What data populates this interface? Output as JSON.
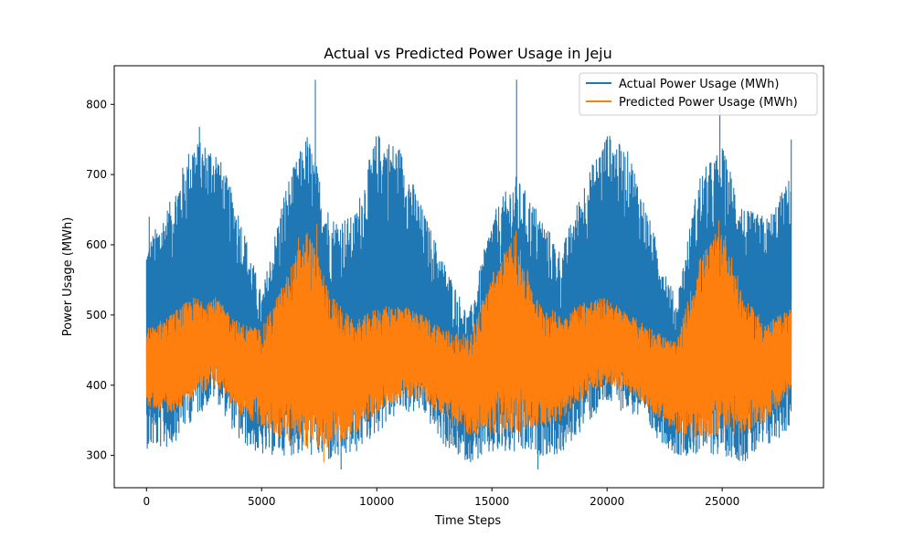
{
  "chart_data": {
    "type": "line",
    "title": "Actual vs Predicted Power Usage in Jeju",
    "xlabel": "Time Steps",
    "ylabel": "Power Usage (MWh)",
    "xlim": [
      -1400,
      29400
    ],
    "ylim": [
      254,
      855
    ],
    "x_ticks": [
      0,
      5000,
      10000,
      15000,
      20000,
      25000
    ],
    "y_ticks": [
      300,
      400,
      500,
      600,
      700,
      800
    ],
    "grid": false,
    "legend_position": "top-right",
    "x_range": [
      0,
      28000
    ],
    "series": [
      {
        "name": "Actual Power Usage (MWh)",
        "color": "#1f77b4",
        "envelope_x": [
          0,
          1000,
          2000,
          3000,
          4000,
          5000,
          6000,
          7000,
          8000,
          9000,
          10000,
          11000,
          12000,
          13000,
          14000,
          15000,
          16000,
          17000,
          18000,
          19000,
          20000,
          21000,
          22000,
          23000,
          24000,
          25000,
          26000,
          27000,
          28000
        ],
        "upper": [
          600,
          660,
          750,
          740,
          650,
          530,
          680,
          760,
          640,
          640,
          760,
          740,
          650,
          570,
          500,
          640,
          700,
          650,
          590,
          690,
          760,
          730,
          620,
          520,
          700,
          740,
          650,
          640,
          700
        ],
        "lower": [
          310,
          310,
          350,
          380,
          320,
          300,
          300,
          300,
          290,
          300,
          330,
          360,
          360,
          310,
          290,
          300,
          300,
          300,
          300,
          340,
          370,
          360,
          330,
          300,
          300,
          300,
          290,
          310,
          340
        ],
        "spikes": [
          [
            120,
            640
          ],
          [
            2300,
            768
          ],
          [
            7330,
            835
          ],
          [
            16070,
            835
          ],
          [
            24900,
            812
          ],
          [
            28000,
            750
          ],
          [
            17000,
            280
          ],
          [
            8450,
            280
          ],
          [
            10250,
            700
          ],
          [
            20150,
            750
          ]
        ]
      },
      {
        "name": "Predicted Power Usage (MWh)",
        "color": "#ff7f0e",
        "envelope_x": [
          0,
          1000,
          2000,
          3000,
          4000,
          5000,
          6000,
          7000,
          8000,
          9000,
          10000,
          11000,
          12000,
          13000,
          14000,
          15000,
          16000,
          17000,
          18000,
          19000,
          20000,
          21000,
          22000,
          23000,
          24000,
          25000,
          26000,
          27000,
          28000
        ],
        "upper": [
          480,
          500,
          525,
          525,
          490,
          480,
          550,
          625,
          530,
          490,
          510,
          515,
          500,
          480,
          470,
          560,
          615,
          520,
          500,
          520,
          525,
          500,
          480,
          460,
          580,
          630,
          520,
          490,
          510
        ],
        "lower": [
          370,
          360,
          380,
          400,
          360,
          340,
          320,
          310,
          310,
          330,
          360,
          380,
          380,
          350,
          330,
          330,
          330,
          340,
          350,
          380,
          400,
          390,
          360,
          330,
          320,
          330,
          330,
          350,
          390
        ],
        "spikes": [
          [
            7400,
            630
          ],
          [
            6600,
            610
          ],
          [
            16050,
            620
          ],
          [
            24850,
            635
          ],
          [
            7700,
            290
          ]
        ]
      }
    ]
  }
}
